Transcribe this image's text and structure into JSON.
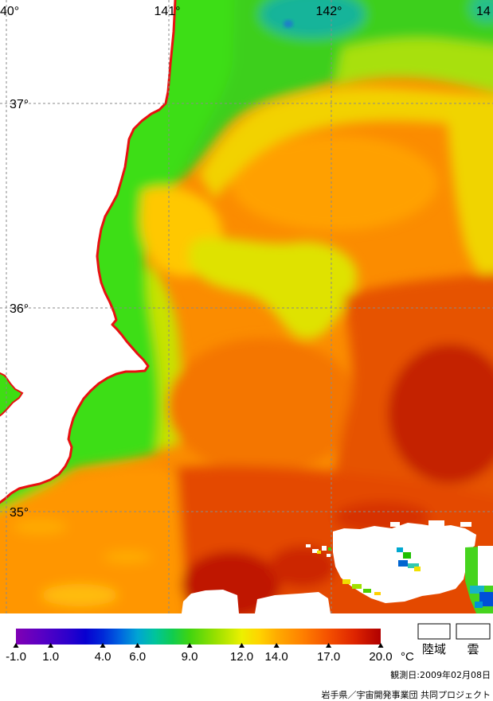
{
  "map": {
    "lon_labels": [
      "40°",
      "141°",
      "142°",
      "14"
    ],
    "lat_labels": [
      "37°",
      "36°",
      "35°"
    ],
    "colors": {
      "land": "#ffffff",
      "coastline": "#e81010",
      "cloud": "#ffffff",
      "graticule": "#8a8a8a"
    }
  },
  "colorbar": {
    "unit": "°C",
    "range": [
      -1.0,
      20.0
    ],
    "ticks": [
      {
        "label": "-1.0",
        "value": -1.0
      },
      {
        "label": "1.0",
        "value": 1.0
      },
      {
        "label": "4.0",
        "value": 4.0
      },
      {
        "label": "6.0",
        "value": 6.0
      },
      {
        "label": "9.0",
        "value": 9.0
      },
      {
        "label": "12.0",
        "value": 12.0
      },
      {
        "label": "14.0",
        "value": 14.0
      },
      {
        "label": "17.0",
        "value": 17.0
      },
      {
        "label": "20.0",
        "value": 20.0
      }
    ],
    "stops": [
      {
        "value": -1.0,
        "color": "#8000b4"
      },
      {
        "value": 0.5,
        "color": "#5800c4"
      },
      {
        "value": 2.0,
        "color": "#2c00cc"
      },
      {
        "value": 3.0,
        "color": "#0800d0"
      },
      {
        "value": 4.0,
        "color": "#0028d8"
      },
      {
        "value": 5.0,
        "color": "#0064e0"
      },
      {
        "value": 6.0,
        "color": "#00a4d4"
      },
      {
        "value": 7.0,
        "color": "#00c49c"
      },
      {
        "value": 8.0,
        "color": "#10cc50"
      },
      {
        "value": 9.0,
        "color": "#40d410"
      },
      {
        "value": 10.5,
        "color": "#98e000"
      },
      {
        "value": 12.0,
        "color": "#ecf000"
      },
      {
        "value": 13.0,
        "color": "#ffd400"
      },
      {
        "value": 14.0,
        "color": "#ffac00"
      },
      {
        "value": 15.5,
        "color": "#ff8000"
      },
      {
        "value": 17.0,
        "color": "#f45000"
      },
      {
        "value": 18.5,
        "color": "#de2400"
      },
      {
        "value": 20.0,
        "color": "#b00000"
      }
    ]
  },
  "legend": {
    "land_label": "陸域",
    "cloud_label": "雲",
    "land_color": "#ffffff",
    "cloud_color": "#ffffff"
  },
  "footer": {
    "observation_date": "観測日:2009年02月08日",
    "credit": "岩手県／宇宙開発事業団 共同プロジェクト"
  }
}
